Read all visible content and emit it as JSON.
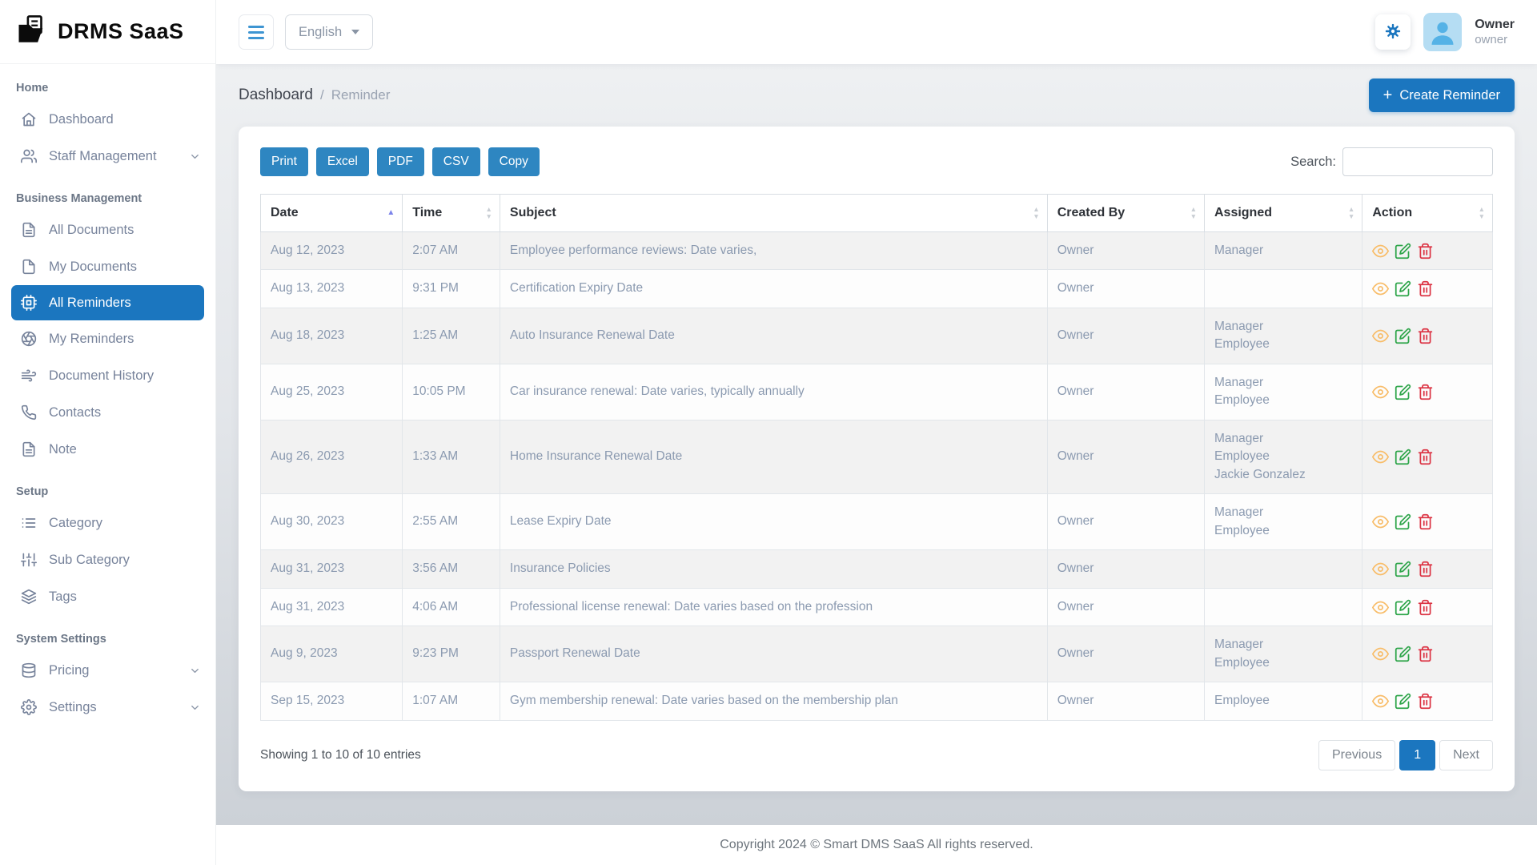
{
  "app": {
    "title": "DRMS SaaS"
  },
  "header": {
    "language": "English",
    "user": {
      "name": "Owner",
      "role": "owner"
    }
  },
  "sidebar": {
    "sections": [
      {
        "label": "Home",
        "items": [
          {
            "label": "Dashboard",
            "icon": "home"
          },
          {
            "label": "Staff Management",
            "icon": "users",
            "chevron": true
          }
        ]
      },
      {
        "label": "Business Management",
        "items": [
          {
            "label": "All Documents",
            "icon": "file-text"
          },
          {
            "label": "My Documents",
            "icon": "file"
          },
          {
            "label": "All Reminders",
            "icon": "cpu",
            "active": true
          },
          {
            "label": "My Reminders",
            "icon": "aperture"
          },
          {
            "label": "Document History",
            "icon": "wind"
          },
          {
            "label": "Contacts",
            "icon": "phone"
          },
          {
            "label": "Note",
            "icon": "file-text"
          }
        ]
      },
      {
        "label": "Setup",
        "items": [
          {
            "label": "Category",
            "icon": "list"
          },
          {
            "label": "Sub Category",
            "icon": "sliders"
          },
          {
            "label": "Tags",
            "icon": "layers"
          }
        ]
      },
      {
        "label": "System Settings",
        "items": [
          {
            "label": "Pricing",
            "icon": "database",
            "chevron": true
          },
          {
            "label": "Settings",
            "icon": "settings",
            "chevron": true
          }
        ]
      }
    ]
  },
  "breadcrumb": {
    "parent": "Dashboard",
    "separator": "/",
    "current": "Reminder"
  },
  "create_button": {
    "plus": "+",
    "label": "Create Reminder"
  },
  "toolbar": {
    "export_buttons": [
      "Print",
      "Excel",
      "PDF",
      "CSV",
      "Copy"
    ],
    "search_label": "Search:",
    "search_value": ""
  },
  "table": {
    "columns": [
      "Date",
      "Time",
      "Subject",
      "Created By",
      "Assigned",
      "Action"
    ],
    "sort": {
      "column": "Date",
      "direction": "asc"
    },
    "rows": [
      {
        "date": "Aug 12, 2023",
        "time": "2:07 AM",
        "subject": "Employee performance reviews: Date varies,",
        "created_by": "Owner",
        "assigned": [
          "Manager"
        ]
      },
      {
        "date": "Aug 13, 2023",
        "time": "9:31 PM",
        "subject": "Certification Expiry Date",
        "created_by": "Owner",
        "assigned": []
      },
      {
        "date": "Aug 18, 2023",
        "time": "1:25 AM",
        "subject": "Auto Insurance Renewal Date",
        "created_by": "Owner",
        "assigned": [
          "Manager",
          "Employee"
        ]
      },
      {
        "date": "Aug 25, 2023",
        "time": "10:05 PM",
        "subject": "Car insurance renewal: Date varies, typically annually",
        "created_by": "Owner",
        "assigned": [
          "Manager",
          "Employee"
        ]
      },
      {
        "date": "Aug 26, 2023",
        "time": "1:33 AM",
        "subject": "Home Insurance Renewal Date",
        "created_by": "Owner",
        "assigned": [
          "Manager",
          "Employee",
          "Jackie Gonzalez"
        ]
      },
      {
        "date": "Aug 30, 2023",
        "time": "2:55 AM",
        "subject": "Lease Expiry Date",
        "created_by": "Owner",
        "assigned": [
          "Manager",
          "Employee"
        ]
      },
      {
        "date": "Aug 31, 2023",
        "time": "3:56 AM",
        "subject": "Insurance Policies",
        "created_by": "Owner",
        "assigned": []
      },
      {
        "date": "Aug 31, 2023",
        "time": "4:06 AM",
        "subject": "Professional license renewal: Date varies based on the profession",
        "created_by": "Owner",
        "assigned": []
      },
      {
        "date": "Aug 9, 2023",
        "time": "9:23 PM",
        "subject": "Passport Renewal Date",
        "created_by": "Owner",
        "assigned": [
          "Manager",
          "Employee"
        ]
      },
      {
        "date": "Sep 15, 2023",
        "time": "1:07 AM",
        "subject": "Gym membership renewal: Date varies based on the membership plan",
        "created_by": "Owner",
        "assigned": [
          "Employee"
        ]
      }
    ],
    "actions": [
      "view",
      "edit",
      "delete"
    ],
    "info": "Showing 1 to 10 of 10 entries"
  },
  "pagination": {
    "previous": "Previous",
    "page": "1",
    "next": "Next"
  },
  "footer": {
    "copyright": "Copyright 2024 © Smart DMS SaaS All rights reserved."
  },
  "colors": {
    "accent": "#1b76bf",
    "export_button": "#2e86c1",
    "active_sort_arrow": "#7b83ea",
    "view_icon": "#f8bd6a",
    "edit_icon": "#2ea54a",
    "delete_icon": "#dc3545",
    "avatar_bg": "#b5ddf3",
    "avatar_fg": "#55b2e6"
  }
}
